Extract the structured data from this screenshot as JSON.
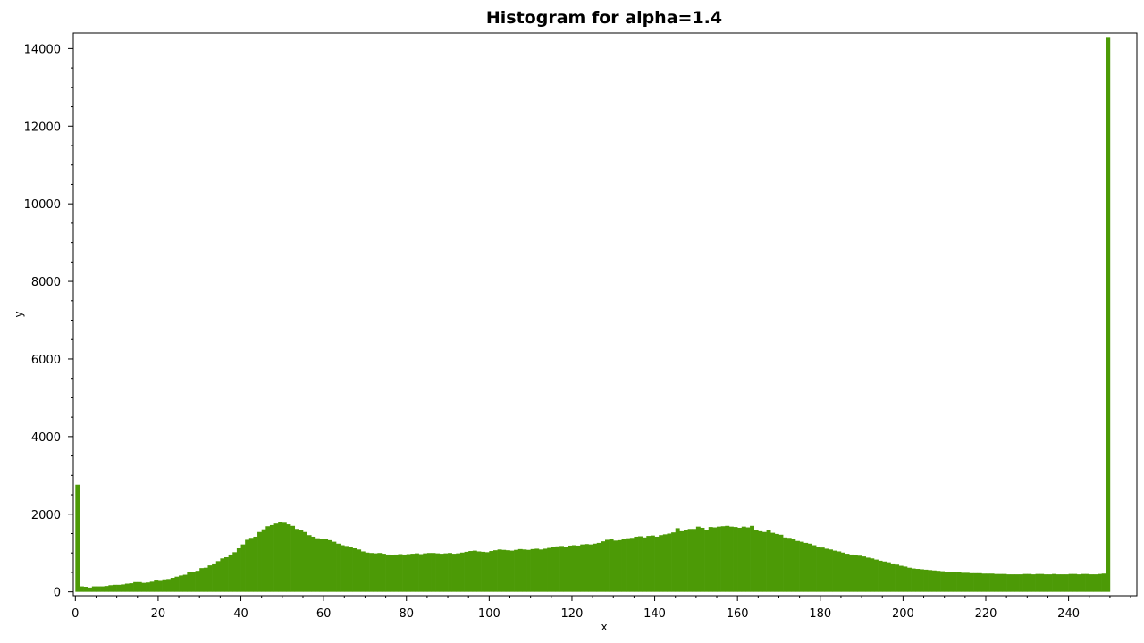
{
  "chart_data": {
    "type": "bar",
    "title": "Histogram for alpha=1.4",
    "xlabel": "x",
    "ylabel": "y",
    "xlim": [
      -0.5,
      256.5
    ],
    "ylim": [
      -100,
      14400
    ],
    "x_ticks": [
      0,
      20,
      40,
      60,
      80,
      100,
      120,
      140,
      160,
      180,
      200,
      220,
      240
    ],
    "y_ticks": [
      0,
      2000,
      4000,
      6000,
      8000,
      10000,
      12000,
      14000
    ],
    "grid": false,
    "legend": "none",
    "bar_color": "#4c9a06",
    "bin_start": 0,
    "bin_width": 1,
    "values": [
      2760,
      140,
      130,
      110,
      140,
      140,
      140,
      150,
      170,
      180,
      180,
      190,
      210,
      220,
      250,
      250,
      230,
      240,
      260,
      290,
      280,
      320,
      330,
      360,
      390,
      420,
      440,
      500,
      520,
      540,
      610,
      620,
      680,
      730,
      790,
      860,
      890,
      960,
      1020,
      1120,
      1220,
      1340,
      1390,
      1420,
      1540,
      1610,
      1690,
      1720,
      1760,
      1800,
      1780,
      1740,
      1700,
      1620,
      1590,
      1540,
      1460,
      1420,
      1380,
      1370,
      1350,
      1330,
      1290,
      1240,
      1200,
      1180,
      1160,
      1120,
      1090,
      1040,
      1010,
      1000,
      990,
      1000,
      980,
      960,
      950,
      960,
      970,
      960,
      970,
      980,
      990,
      970,
      990,
      1000,
      1000,
      990,
      980,
      990,
      1000,
      980,
      990,
      1010,
      1030,
      1050,
      1060,
      1040,
      1030,
      1020,
      1050,
      1070,
      1090,
      1080,
      1070,
      1060,
      1080,
      1100,
      1090,
      1080,
      1100,
      1110,
      1090,
      1110,
      1130,
      1150,
      1170,
      1180,
      1160,
      1190,
      1200,
      1190,
      1220,
      1230,
      1220,
      1240,
      1260,
      1300,
      1340,
      1360,
      1320,
      1330,
      1370,
      1380,
      1390,
      1420,
      1430,
      1400,
      1440,
      1450,
      1420,
      1460,
      1480,
      1500,
      1530,
      1640,
      1560,
      1600,
      1620,
      1620,
      1680,
      1650,
      1600,
      1670,
      1660,
      1680,
      1690,
      1700,
      1680,
      1670,
      1650,
      1680,
      1660,
      1700,
      1600,
      1560,
      1540,
      1580,
      1520,
      1490,
      1470,
      1400,
      1390,
      1370,
      1310,
      1290,
      1260,
      1240,
      1200,
      1160,
      1140,
      1110,
      1090,
      1060,
      1040,
      1010,
      980,
      960,
      950,
      930,
      910,
      880,
      860,
      830,
      800,
      780,
      760,
      730,
      700,
      670,
      650,
      620,
      600,
      590,
      580,
      570,
      560,
      550,
      540,
      530,
      520,
      510,
      500,
      500,
      490,
      490,
      480,
      480,
      480,
      470,
      470,
      470,
      460,
      460,
      460,
      450,
      450,
      450,
      450,
      460,
      460,
      450,
      460,
      460,
      450,
      450,
      460,
      450,
      450,
      450,
      460,
      460,
      450,
      460,
      460,
      450,
      450,
      460,
      470,
      14300
    ]
  }
}
